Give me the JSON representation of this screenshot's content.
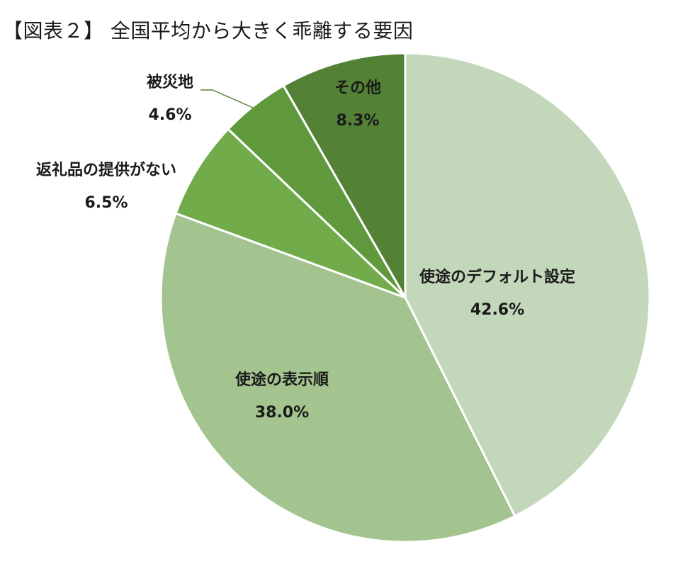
{
  "chart_data": {
    "type": "pie",
    "title": "【図表２】 全国平均から大きく乖離する要因",
    "slices": [
      {
        "label": "使途のデフォルト設定",
        "value": 42.6,
        "display": "42.6%",
        "color": "#c3d7ba"
      },
      {
        "label": "使途の表示順",
        "value": 38.0,
        "display": "38.0%",
        "color": "#a3c48f"
      },
      {
        "label": "返礼品の提供がない",
        "value": 6.5,
        "display": "6.5%",
        "color": "#71ab4a"
      },
      {
        "label": "被災地",
        "value": 4.6,
        "display": "4.6%",
        "color": "#60983c"
      },
      {
        "label": "その他",
        "value": 8.3,
        "display": "8.3%",
        "color": "#538135"
      }
    ],
    "start_angle": "12 o'clock",
    "direction": "clockwise",
    "legend": "none",
    "leader_line_color": "#538135"
  }
}
